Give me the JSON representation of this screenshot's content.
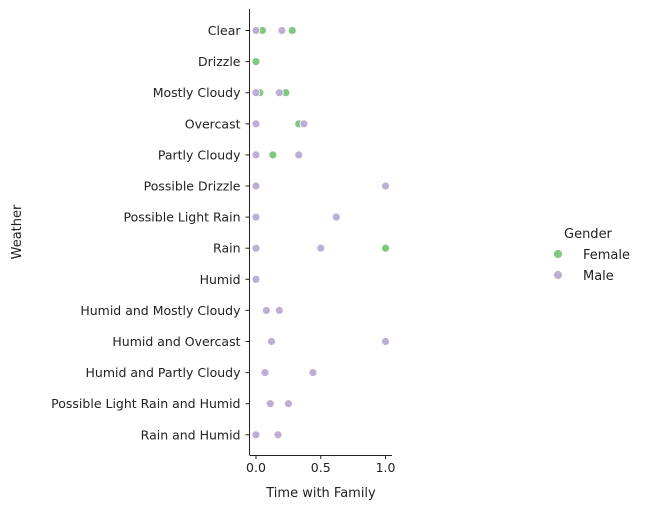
{
  "chart_data": {
    "type": "scatter",
    "title": "",
    "xlabel": "Time with Family",
    "ylabel": "Weather",
    "xlim": [
      -0.05,
      1.05
    ],
    "xticks": [
      {
        "value": 0.0,
        "label": "0.0"
      },
      {
        "value": 0.5,
        "label": "0.5"
      },
      {
        "value": 1.0,
        "label": "1.0"
      }
    ],
    "categories": [
      "Clear",
      "Drizzle",
      "Mostly Cloudy",
      "Overcast",
      "Partly Cloudy",
      "Possible Drizzle",
      "Possible Light Rain",
      "Rain",
      "Humid",
      "Humid and Mostly Cloudy",
      "Humid and Overcast",
      "Humid and Partly Cloudy",
      "Possible Light Rain and Humid",
      "Rain and Humid"
    ],
    "grid": false,
    "legend": {
      "title": "Gender",
      "placement": "right",
      "entries": [
        {
          "name": "Female",
          "color": "#7fc97f"
        },
        {
          "name": "Male",
          "color": "#beaed4"
        }
      ]
    },
    "series": [
      {
        "name": "Female",
        "color": "#7fc97f",
        "points": [
          {
            "y": "Clear",
            "x": 0.05
          },
          {
            "y": "Clear",
            "x": 0.28
          },
          {
            "y": "Drizzle",
            "x": 0.0
          },
          {
            "y": "Mostly Cloudy",
            "x": 0.03
          },
          {
            "y": "Mostly Cloudy",
            "x": 0.23
          },
          {
            "y": "Overcast",
            "x": 0.33
          },
          {
            "y": "Partly Cloudy",
            "x": 0.13
          },
          {
            "y": "Rain",
            "x": 1.0
          }
        ]
      },
      {
        "name": "Male",
        "color": "#beaed4",
        "points": [
          {
            "y": "Clear",
            "x": 0.0
          },
          {
            "y": "Clear",
            "x": 0.2
          },
          {
            "y": "Mostly Cloudy",
            "x": 0.0
          },
          {
            "y": "Mostly Cloudy",
            "x": 0.18
          },
          {
            "y": "Overcast",
            "x": 0.0
          },
          {
            "y": "Overcast",
            "x": 0.37
          },
          {
            "y": "Partly Cloudy",
            "x": 0.0
          },
          {
            "y": "Partly Cloudy",
            "x": 0.33
          },
          {
            "y": "Possible Drizzle",
            "x": 0.0
          },
          {
            "y": "Possible Drizzle",
            "x": 1.0
          },
          {
            "y": "Possible Light Rain",
            "x": 0.0
          },
          {
            "y": "Possible Light Rain",
            "x": 0.62
          },
          {
            "y": "Rain",
            "x": 0.0
          },
          {
            "y": "Rain",
            "x": 0.5
          },
          {
            "y": "Humid",
            "x": 0.0
          },
          {
            "y": "Humid and Mostly Cloudy",
            "x": 0.08
          },
          {
            "y": "Humid and Mostly Cloudy",
            "x": 0.18
          },
          {
            "y": "Humid and Overcast",
            "x": 0.12
          },
          {
            "y": "Humid and Overcast",
            "x": 1.0
          },
          {
            "y": "Humid and Partly Cloudy",
            "x": 0.07
          },
          {
            "y": "Humid and Partly Cloudy",
            "x": 0.44
          },
          {
            "y": "Possible Light Rain and Humid",
            "x": 0.11
          },
          {
            "y": "Possible Light Rain and Humid",
            "x": 0.25
          },
          {
            "y": "Rain and Humid",
            "x": 0.0
          },
          {
            "y": "Rain and Humid",
            "x": 0.17
          }
        ]
      }
    ]
  }
}
